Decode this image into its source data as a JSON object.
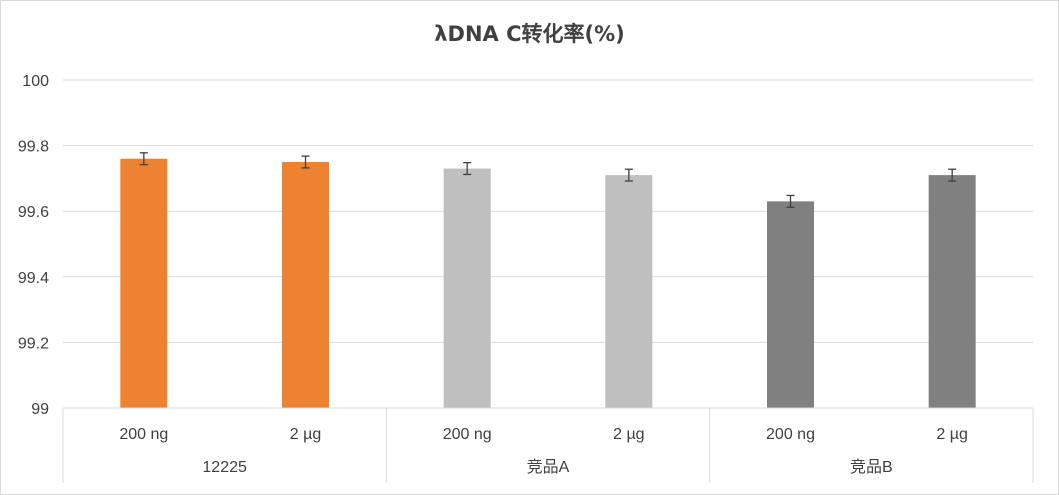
{
  "chart_data": {
    "type": "bar",
    "title": "λDNA C转化率(%)",
    "xlabel": "",
    "ylabel": "",
    "ylim": [
      99,
      100
    ],
    "yticks": [
      "99",
      "99.2",
      "99.4",
      "99.6",
      "99.8",
      "100"
    ],
    "grid": true,
    "legend": "none",
    "groups": [
      "12225",
      "竞品A",
      "竞品B"
    ],
    "categories": [
      "200 ng",
      "2 µg",
      "200 ng",
      "2 µg",
      "200 ng",
      "2 µg"
    ],
    "category_group": [
      0,
      0,
      1,
      1,
      2,
      2
    ],
    "values": [
      99.76,
      99.75,
      99.73,
      99.71,
      99.63,
      99.71
    ],
    "error": [
      0.018,
      0.018,
      0.018,
      0.018,
      0.018,
      0.018
    ],
    "colors": [
      "#ed8330",
      "#ed8330",
      "#bfbfbf",
      "#bfbfbf",
      "#808080",
      "#808080"
    ]
  }
}
